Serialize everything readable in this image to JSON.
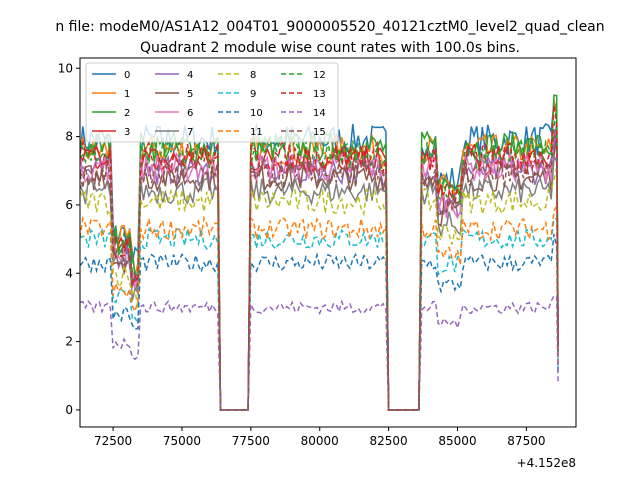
{
  "chart_data": {
    "type": "line",
    "suptitle": "n file: modeM0/AS1A12_004T01_9000005520_40121cztM0_level2_quad_clean",
    "title": "Quadrant 2 module wise count rates with 100.0s bins.",
    "xlabel": "",
    "ylabel": "",
    "x_offset_label": "+4.152e8",
    "x_offset": 415200000,
    "xlim": [
      71300,
      89300
    ],
    "ylim": [
      -0.5,
      10.3
    ],
    "x_ticks": [
      72500,
      75000,
      77500,
      80000,
      82500,
      85000,
      87500
    ],
    "x_tick_labels": [
      "72500",
      "75000",
      "77500",
      "80000",
      "82500",
      "85000",
      "87500"
    ],
    "y_ticks": [
      0,
      2,
      4,
      6,
      8,
      10
    ],
    "y_tick_labels": [
      "0",
      "2",
      "4",
      "6",
      "8",
      "10"
    ],
    "legend_position": "upper-left",
    "legend_columns": 4,
    "grid": false,
    "segments": [
      {
        "start": 71300,
        "end": 76300
      },
      {
        "start": 77500,
        "end": 82400
      },
      {
        "start": 83700,
        "end": 88600
      }
    ],
    "gaps": [
      {
        "start": 76300,
        "end": 77500,
        "value": 0
      },
      {
        "start": 82400,
        "end": 83700,
        "value": 0
      }
    ],
    "bin_seconds": 100.0,
    "series": [
      {
        "name": "0",
        "color": "#1f77b4",
        "dash": false,
        "level": 7.9
      },
      {
        "name": "1",
        "color": "#ff7f0e",
        "dash": false,
        "level": 7.6
      },
      {
        "name": "2",
        "color": "#2ca02c",
        "dash": false,
        "level": 7.7
      },
      {
        "name": "3",
        "color": "#d62728",
        "dash": false,
        "level": 7.3
      },
      {
        "name": "4",
        "color": "#9467bd",
        "dash": false,
        "level": 7.0
      },
      {
        "name": "5",
        "color": "#8c564b",
        "dash": false,
        "level": 6.8
      },
      {
        "name": "6",
        "color": "#e377c2",
        "dash": false,
        "level": 7.1
      },
      {
        "name": "7",
        "color": "#7f7f7f",
        "dash": false,
        "level": 6.4
      },
      {
        "name": "8",
        "color": "#bcbd22",
        "dash": true,
        "level": 6.1
      },
      {
        "name": "9",
        "color": "#17becf",
        "dash": true,
        "level": 5.0
      },
      {
        "name": "10",
        "color": "#1f77b4",
        "dash": true,
        "level": 4.3
      },
      {
        "name": "11",
        "color": "#ff7f0e",
        "dash": true,
        "level": 5.3
      },
      {
        "name": "12",
        "color": "#2ca02c",
        "dash": true,
        "level": 7.5
      },
      {
        "name": "13",
        "color": "#d62728",
        "dash": true,
        "level": 7.4
      },
      {
        "name": "14",
        "color": "#9467bd",
        "dash": true,
        "level": 3.0
      },
      {
        "name": "15",
        "color": "#8c564b",
        "dash": true,
        "level": 6.9
      }
    ]
  }
}
